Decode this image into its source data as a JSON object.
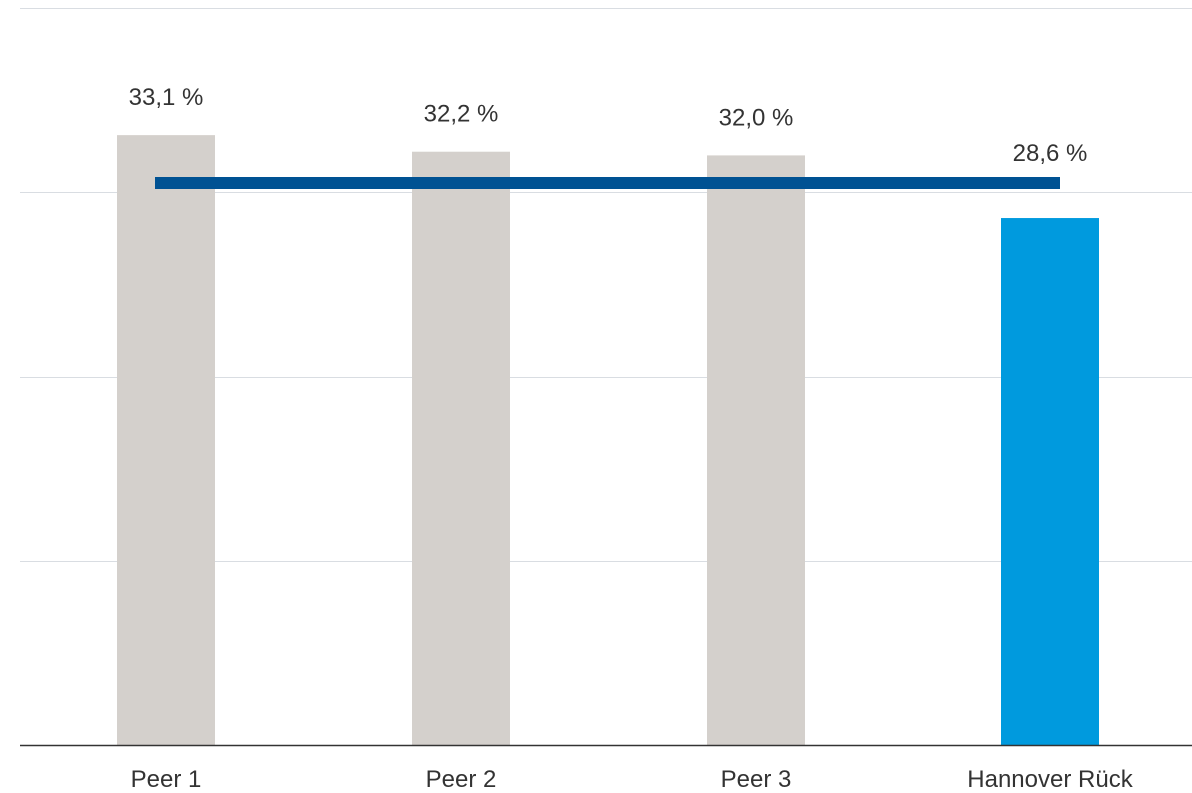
{
  "chart_data": {
    "type": "bar",
    "categories": [
      "Peer 1",
      "Peer 2",
      "Peer 3",
      "Hannover Rück"
    ],
    "values": [
      33.1,
      32.2,
      32.0,
      28.6
    ],
    "data_labels": [
      "33,1 %",
      "32,2 %",
      "32,0 %",
      "28,6 %"
    ],
    "reference_line": {
      "value": 30.5
    },
    "ylim": [
      0,
      40
    ],
    "y_gridlines": [
      0,
      10,
      20,
      30,
      40
    ],
    "grid": true,
    "legend": "none",
    "title": "",
    "xlabel": "",
    "ylabel": ""
  },
  "colors": {
    "peer_bar": "#d4d0cc",
    "highlight_bar": "#009ade",
    "reference_line": "#005293",
    "gridline": "#d9dde2",
    "axis": "#333333"
  }
}
